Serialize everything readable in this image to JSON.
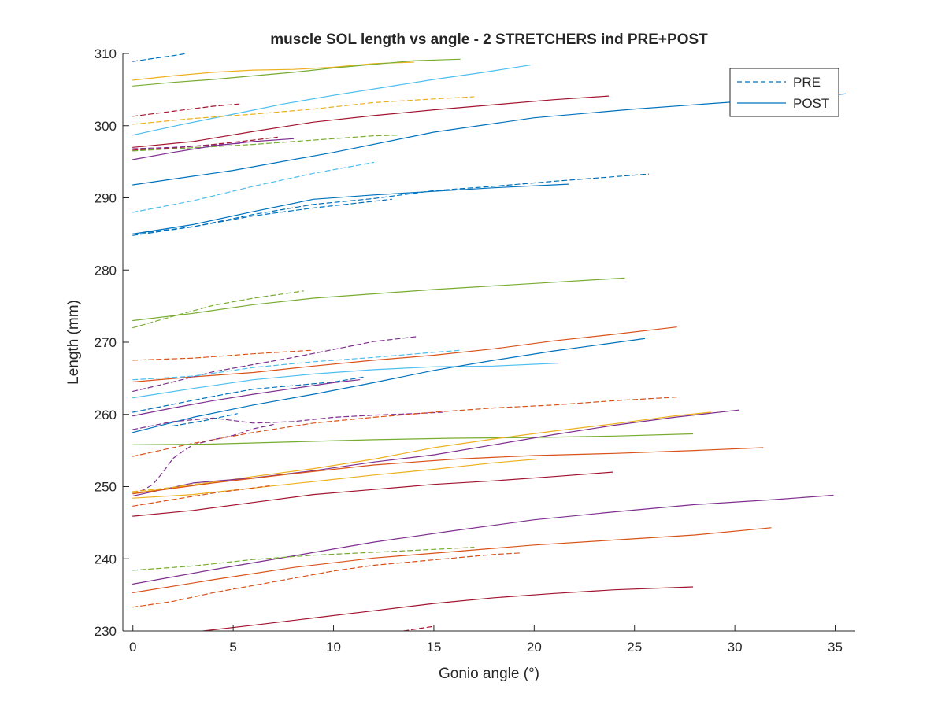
{
  "chart_data": {
    "type": "line",
    "title": "muscle SOL length vs angle - 2 STRETCHERS ind PRE+POST",
    "xlabel": "Gonio angle (°)",
    "ylabel": "Length (mm)",
    "xlim": [
      -0.5,
      36
    ],
    "ylim": [
      230,
      310
    ],
    "xticks": [
      0,
      5,
      10,
      15,
      20,
      25,
      30,
      35
    ],
    "yticks": [
      230,
      240,
      250,
      260,
      270,
      280,
      290,
      300,
      310
    ],
    "grid": false,
    "legend": {
      "position": "top-right",
      "entries": [
        {
          "label": "PRE",
          "style": "dashed"
        },
        {
          "label": "POST",
          "style": "solid"
        }
      ]
    },
    "colors": [
      "#0072BD",
      "#D95319",
      "#EDB120",
      "#7E2F8E",
      "#77AC30",
      "#4DBEEE",
      "#A2142F"
    ],
    "series": [
      {
        "style": "dashed",
        "color": "#0072BD",
        "x": [
          0,
          1,
          2,
          2.7
        ],
        "y": [
          308.9,
          309.3,
          309.7,
          310
        ]
      },
      {
        "style": "solid",
        "color": "#EDB120",
        "x": [
          0,
          2,
          4,
          6,
          8,
          10,
          12,
          14
        ],
        "y": [
          306.3,
          306.9,
          307.4,
          307.7,
          307.8,
          308.1,
          308.6,
          308.8
        ]
      },
      {
        "style": "solid",
        "color": "#77AC30",
        "x": [
          0,
          2,
          4,
          6,
          8,
          10,
          12,
          14,
          16.3
        ],
        "y": [
          305.5,
          306,
          306.4,
          306.9,
          307.4,
          308,
          308.5,
          309,
          309.2
        ]
      },
      {
        "style": "solid",
        "color": "#4DBEEE",
        "x": [
          0,
          2.5,
          5,
          7.5,
          10,
          12.5,
          15,
          17.5,
          19.8
        ],
        "y": [
          298.7,
          300.2,
          301.6,
          303,
          304.2,
          305.3,
          306.4,
          307.4,
          308.4
        ]
      },
      {
        "style": "dashed",
        "color": "#EDB120",
        "x": [
          0,
          3,
          6,
          9,
          12,
          15,
          17
        ],
        "y": [
          300.2,
          301,
          301.6,
          302.3,
          303.2,
          303.7,
          304
        ]
      },
      {
        "style": "dashed",
        "color": "#A2142F",
        "x": [
          0,
          2,
          4,
          5.3
        ],
        "y": [
          301.3,
          302,
          302.7,
          303
        ]
      },
      {
        "style": "solid",
        "color": "#A2142F",
        "x": [
          0,
          3,
          6,
          9,
          12,
          15,
          18,
          21,
          23.7
        ],
        "y": [
          297,
          297.8,
          299.2,
          300.5,
          301.4,
          302.2,
          302.9,
          303.6,
          304.1
        ]
      },
      {
        "style": "dashed",
        "color": "#A2142F",
        "x": [
          0,
          2,
          4,
          6,
          7.2
        ],
        "y": [
          296.6,
          296.9,
          297.4,
          298,
          298.4
        ]
      },
      {
        "style": "dashed",
        "color": "#77AC30",
        "x": [
          0,
          2,
          4,
          6,
          8,
          10,
          12,
          13.3
        ],
        "y": [
          296.5,
          296.8,
          297.1,
          297.4,
          297.8,
          298.2,
          298.6,
          298.7
        ]
      },
      {
        "style": "dashed",
        "color": "#7E2F8E",
        "x": [
          0,
          2,
          4,
          5.5
        ],
        "y": [
          296.8,
          297,
          297.3,
          297.6
        ]
      },
      {
        "style": "solid",
        "color": "#7E2F8E",
        "x": [
          0,
          2,
          4,
          6,
          8
        ],
        "y": [
          295.3,
          296.3,
          297.2,
          297.8,
          298.2
        ]
      },
      {
        "style": "solid",
        "color": "#0072BD",
        "x": [
          0,
          5,
          10,
          15,
          20,
          25,
          30,
          35.5
        ],
        "y": [
          291.8,
          293.8,
          296.3,
          299.1,
          301.1,
          302.3,
          303.3,
          304.4
        ]
      },
      {
        "style": "dashed",
        "color": "#4DBEEE",
        "x": [
          0,
          3,
          6,
          9,
          12
        ],
        "y": [
          288,
          289.6,
          291.6,
          293.4,
          294.9
        ]
      },
      {
        "style": "dashed",
        "color": "#0072BD",
        "x": [
          0,
          3,
          6,
          9,
          12,
          15,
          18,
          21,
          25.7
        ],
        "y": [
          284.8,
          286,
          287.7,
          289.1,
          289.9,
          291,
          291.6,
          292.3,
          293.3
        ]
      },
      {
        "style": "dashed",
        "color": "#0072BD",
        "x": [
          0,
          3,
          6,
          9,
          12.9
        ],
        "y": [
          285,
          286,
          287.5,
          288.6,
          289.8
        ]
      },
      {
        "style": "solid",
        "color": "#0072BD",
        "x": [
          0,
          3,
          6,
          9,
          12,
          15,
          18,
          21.7
        ],
        "y": [
          285,
          286.3,
          288.1,
          289.8,
          290.4,
          290.9,
          291.4,
          291.9
        ]
      },
      {
        "style": "solid",
        "color": "#77AC30",
        "x": [
          0,
          3,
          6,
          9,
          12,
          15,
          18,
          21,
          24.5
        ],
        "y": [
          273,
          274,
          275.2,
          276.1,
          276.7,
          277.3,
          277.8,
          278.3,
          278.9
        ]
      },
      {
        "style": "dashed",
        "color": "#77AC30",
        "x": [
          0,
          2,
          4,
          6,
          8.5
        ],
        "y": [
          272,
          273.6,
          275.1,
          276.1,
          277.1
        ]
      },
      {
        "style": "solid",
        "color": "#D95319",
        "x": [
          0,
          3,
          6,
          9,
          12,
          15,
          18,
          21,
          24,
          27.1
        ],
        "y": [
          264.5,
          265.2,
          265.8,
          266.7,
          267.5,
          268.2,
          269.1,
          270.2,
          271.1,
          272.1
        ]
      },
      {
        "style": "dashed",
        "color": "#D95319",
        "x": [
          0,
          3,
          6,
          9
        ],
        "y": [
          267.5,
          267.8,
          268.4,
          268.9
        ]
      },
      {
        "style": "dashed",
        "color": "#7E2F8E",
        "x": [
          0,
          2,
          4,
          6,
          8,
          10,
          12,
          14.2
        ],
        "y": [
          263.2,
          264.5,
          265.9,
          266.9,
          267.9,
          269,
          270.1,
          270.8
        ]
      },
      {
        "style": "dashed",
        "color": "#4DBEEE",
        "x": [
          0,
          3,
          6,
          9,
          12,
          15,
          16.4
        ],
        "y": [
          264.8,
          265.3,
          266.5,
          267.3,
          267.9,
          268.6,
          268.9
        ]
      },
      {
        "style": "solid",
        "color": "#4DBEEE",
        "x": [
          0,
          3,
          6,
          9,
          12,
          15,
          18,
          21.2
        ],
        "y": [
          262.3,
          263.6,
          264.8,
          265.6,
          266.2,
          266.6,
          266.7,
          267.1
        ]
      },
      {
        "style": "solid",
        "color": "#0072BD",
        "x": [
          0,
          3,
          6,
          9,
          12,
          15,
          18,
          21,
          25.5
        ],
        "y": [
          257.5,
          259.6,
          261.3,
          262.8,
          264.4,
          266.1,
          267.5,
          268.8,
          270.5
        ]
      },
      {
        "style": "dashed",
        "color": "#0072BD",
        "x": [
          0,
          2,
          4,
          6,
          8,
          10,
          11.6
        ],
        "y": [
          260.3,
          261.4,
          262.5,
          263.5,
          264,
          264.5,
          265.2
        ]
      },
      {
        "style": "solid",
        "color": "#7E2F8E",
        "x": [
          0,
          2,
          4,
          6,
          8,
          10,
          11.3
        ],
        "y": [
          259.8,
          260.9,
          261.9,
          262.8,
          263.6,
          264.4,
          264.8
        ]
      },
      {
        "style": "dashed",
        "color": "#7E2F8E",
        "x": [
          0,
          2,
          4,
          6,
          8,
          10,
          12,
          14,
          15.5
        ],
        "y": [
          257.9,
          259,
          259.5,
          258.8,
          259,
          259.6,
          259.9,
          260.1,
          260.3
        ]
      },
      {
        "style": "dashed",
        "color": "#0072BD",
        "x": [
          2,
          3.5,
          5.2
        ],
        "y": [
          258.4,
          259.1,
          260.1
        ]
      },
      {
        "style": "dashed",
        "color": "#D95319",
        "x": [
          0,
          3,
          6,
          9,
          12,
          15,
          18,
          21,
          24,
          27.1
        ],
        "y": [
          254.2,
          256,
          257.5,
          258.8,
          259.6,
          260.3,
          260.9,
          261.3,
          261.9,
          262.4
        ]
      },
      {
        "style": "dashed",
        "color": "#7E2F8E",
        "x": [
          0,
          0.5,
          1,
          1.5,
          2,
          2.5,
          3,
          4,
          5,
          6,
          7
        ],
        "y": [
          249.2,
          249.5,
          250.3,
          252,
          253.9,
          254.9,
          255.8,
          256.5,
          257.1,
          258,
          258.6
        ]
      },
      {
        "style": "solid",
        "color": "#77AC30",
        "x": [
          0,
          4,
          8,
          12,
          16,
          20,
          24,
          27.9
        ],
        "y": [
          255.8,
          255.9,
          256.2,
          256.5,
          256.7,
          256.8,
          257,
          257.3
        ]
      },
      {
        "style": "solid",
        "color": "#EDB120",
        "x": [
          0,
          3,
          6,
          9,
          12,
          15,
          18,
          21,
          24,
          27,
          28.8
        ],
        "y": [
          249.1,
          250.2,
          251.4,
          252.5,
          253.8,
          255.4,
          256.6,
          257.7,
          258.7,
          259.8,
          260.3
        ]
      },
      {
        "style": "solid",
        "color": "#7E2F8E",
        "x": [
          0,
          3,
          6,
          9,
          12,
          15,
          18,
          21,
          24,
          27,
          30.2
        ],
        "y": [
          248.7,
          250.5,
          251.2,
          252.2,
          253.4,
          254.4,
          255.8,
          257.2,
          258.5,
          259.6,
          260.6
        ]
      },
      {
        "style": "solid",
        "color": "#D95319",
        "x": [
          0,
          4,
          8,
          12,
          16,
          20,
          24,
          28,
          31.4
        ],
        "y": [
          249,
          250.5,
          251.8,
          253,
          253.8,
          254.3,
          254.6,
          255,
          255.4
        ]
      },
      {
        "style": "dashed",
        "color": "#EDB120",
        "x": [
          0,
          1,
          2,
          3,
          4
        ],
        "y": [
          249.3,
          249.6,
          249.9,
          250.3,
          250.6
        ]
      },
      {
        "style": "solid",
        "color": "#EDB120",
        "x": [
          0,
          3,
          6,
          9,
          12,
          15,
          18,
          20.1
        ],
        "y": [
          248.4,
          248.9,
          249.8,
          250.7,
          251.6,
          252.4,
          253.3,
          253.8
        ]
      },
      {
        "style": "dashed",
        "color": "#D95319",
        "x": [
          0,
          2,
          4,
          6.8
        ],
        "y": [
          247.3,
          248.2,
          249.1,
          250.1
        ]
      },
      {
        "style": "solid",
        "color": "#A2142F",
        "x": [
          0,
          3,
          6,
          9,
          12,
          15,
          18,
          21,
          23.9
        ],
        "y": [
          245.9,
          246.7,
          247.8,
          248.9,
          249.6,
          250.3,
          250.8,
          251.4,
          252
        ]
      },
      {
        "style": "solid",
        "color": "#7E2F8E",
        "x": [
          0,
          4,
          8,
          12,
          16,
          20,
          24,
          28,
          32,
          34.9
        ],
        "y": [
          236.5,
          238.5,
          240.4,
          242.3,
          243.9,
          245.4,
          246.5,
          247.5,
          248.2,
          248.8
        ]
      },
      {
        "style": "dashed",
        "color": "#77AC30",
        "x": [
          0,
          3,
          6,
          9,
          12,
          15,
          17
        ],
        "y": [
          238.4,
          239,
          239.9,
          240.5,
          240.9,
          241.3,
          241.6
        ]
      },
      {
        "style": "solid",
        "color": "#D95319",
        "x": [
          0,
          4,
          8,
          12,
          16,
          20,
          24,
          28,
          31.8
        ],
        "y": [
          235.3,
          237.1,
          238.8,
          240.1,
          241,
          241.9,
          242.6,
          243.3,
          244.3
        ]
      },
      {
        "style": "dashed",
        "color": "#D95319",
        "x": [
          0,
          2,
          4,
          6,
          8,
          10,
          12,
          14,
          16,
          18,
          19.3
        ],
        "y": [
          233.3,
          234.1,
          235.3,
          236.3,
          237.3,
          238.3,
          239.1,
          239.6,
          240.1,
          240.6,
          240.8
        ]
      },
      {
        "style": "solid",
        "color": "#A2142F",
        "x": [
          3.5,
          6,
          9,
          12,
          15,
          18,
          21,
          24,
          27.9
        ],
        "y": [
          230,
          230.8,
          231.8,
          232.8,
          233.8,
          234.6,
          235.2,
          235.7,
          236.1
        ]
      },
      {
        "style": "dashed",
        "color": "#A2142F",
        "x": [
          13.5,
          14.2,
          14.9
        ],
        "y": [
          230,
          230.3,
          230.6
        ]
      }
    ]
  }
}
